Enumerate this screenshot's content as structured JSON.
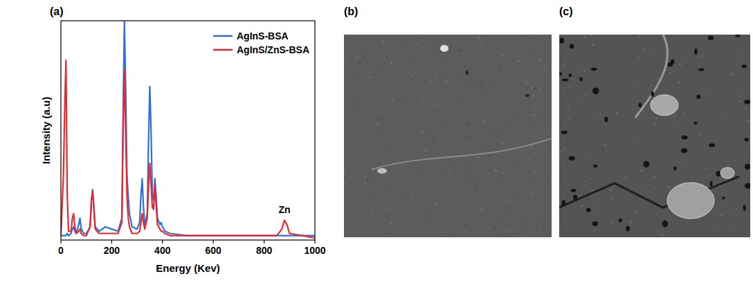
{
  "chart_data": {
    "type": "line",
    "x_label": "Energy (Kev)",
    "y_label": "Intensity (a.u)",
    "x": [
      0,
      10,
      15,
      20,
      25,
      30,
      40,
      45,
      50,
      55,
      60,
      70,
      75,
      80,
      90,
      100,
      115,
      120,
      125,
      130,
      135,
      150,
      175,
      200,
      225,
      240,
      245,
      250,
      255,
      260,
      265,
      270,
      280,
      300,
      310,
      315,
      320,
      325,
      330,
      340,
      345,
      350,
      355,
      360,
      365,
      370,
      375,
      380,
      390,
      395,
      400,
      410,
      430,
      500,
      600,
      700,
      800,
      850,
      870,
      880,
      890,
      900,
      950,
      1000
    ],
    "series": [
      {
        "name": "AgInS-BSA",
        "color": "#2e6fd9",
        "values": [
          2,
          2,
          2,
          2,
          3,
          2,
          3,
          5,
          6,
          4,
          3,
          7,
          10,
          5,
          3,
          3,
          6,
          18,
          23,
          15,
          6,
          4,
          6,
          5,
          4,
          10,
          60,
          100,
          70,
          30,
          20,
          12,
          6,
          5,
          8,
          20,
          28,
          15,
          7,
          12,
          45,
          70,
          50,
          20,
          18,
          28,
          20,
          10,
          7,
          8,
          6,
          4,
          3,
          2,
          2,
          2,
          2,
          2,
          2,
          2,
          2,
          2,
          2,
          2
        ]
      },
      {
        "name": "AgInS/ZnS-BSA",
        "color": "#e8282b",
        "values": [
          2,
          30,
          60,
          82,
          20,
          4,
          4,
          10,
          12,
          6,
          3,
          4,
          5,
          3,
          2,
          2,
          6,
          18,
          22,
          14,
          5,
          3,
          3,
          3,
          3,
          8,
          50,
          78,
          50,
          20,
          10,
          6,
          3,
          3,
          4,
          8,
          12,
          8,
          5,
          10,
          25,
          35,
          25,
          15,
          14,
          25,
          16,
          7,
          5,
          4,
          4,
          3,
          2,
          2,
          2,
          2,
          2,
          2,
          5,
          9,
          7,
          3,
          2,
          1
        ]
      }
    ],
    "xlim": [
      0,
      1000
    ],
    "xticks": [
      0,
      200,
      400,
      600,
      800,
      1000
    ],
    "ylim": [
      0,
      100
    ],
    "tick_labels": "x",
    "grid": false,
    "legend": "top-right",
    "annotations": [
      {
        "text": "Zn",
        "x": 880,
        "y": 9
      }
    ]
  },
  "panel_labels": [
    "(a)",
    "(b)",
    "(c)"
  ]
}
